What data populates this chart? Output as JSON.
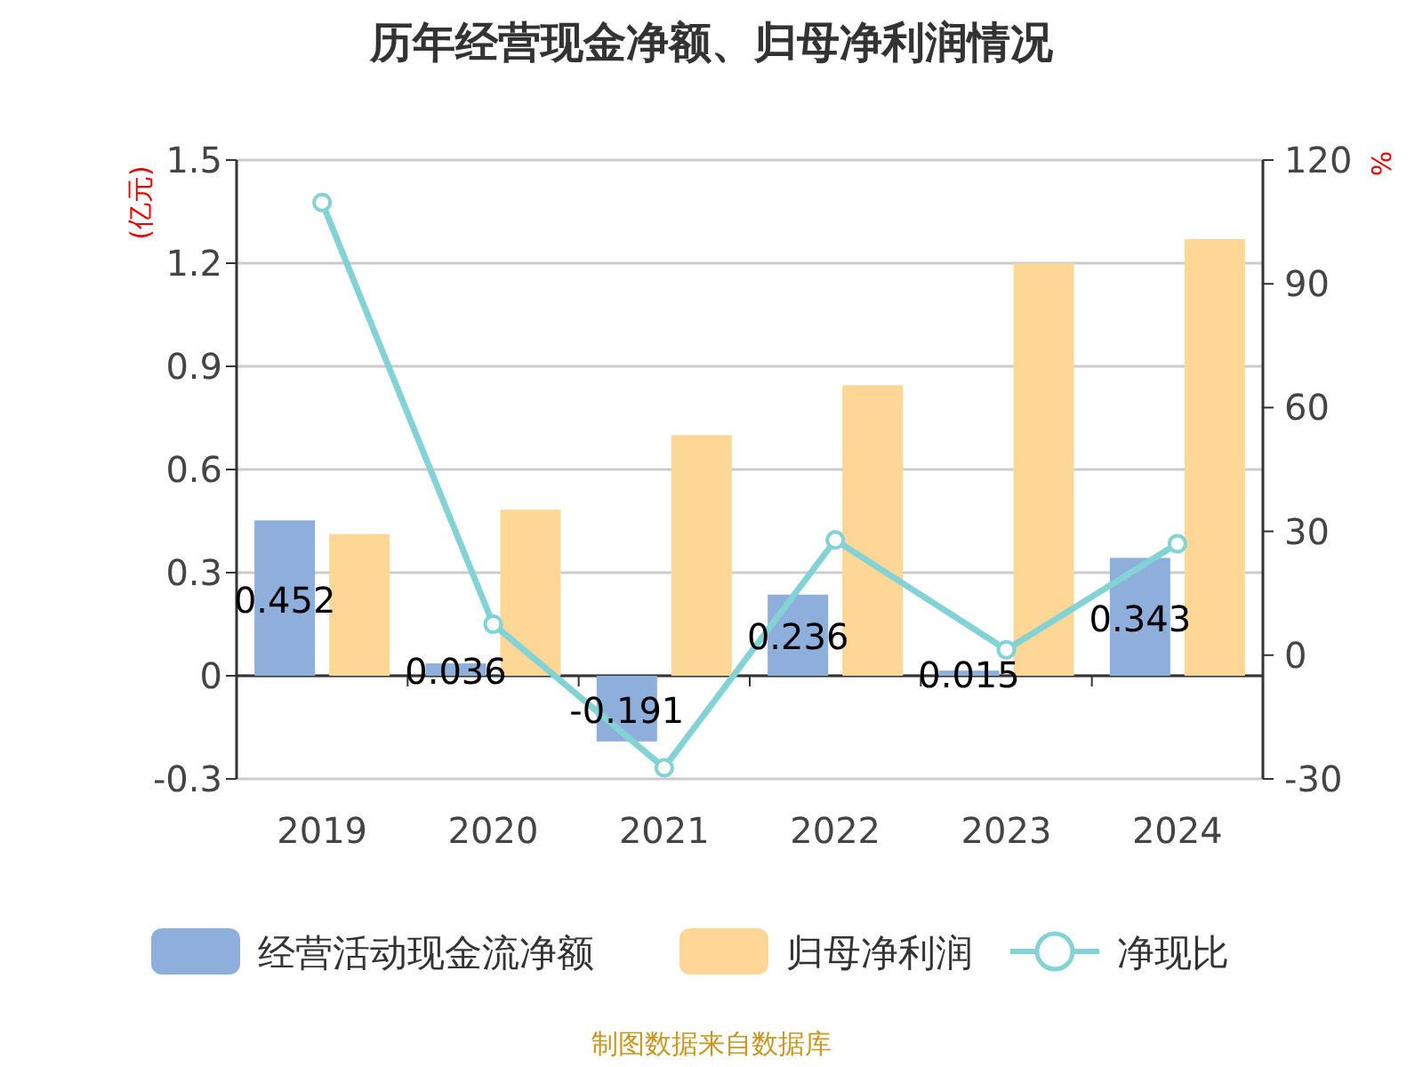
{
  "chart_data": {
    "type": "bar",
    "title": "历年经营现金净额、归母净利润情况",
    "categories": [
      "2019",
      "2020",
      "2021",
      "2022",
      "2023",
      "2024"
    ],
    "series": [
      {
        "name": "经营活动现金流净额",
        "color": "#8eaedb",
        "values": [
          0.452,
          0.036,
          -0.191,
          0.236,
          0.015,
          0.343
        ],
        "value_labels": [
          "0.452",
          "0.036",
          "-0.191",
          "0.236",
          "0.015",
          "0.343"
        ]
      },
      {
        "name": "归母净利润",
        "color": "#fed797",
        "values": [
          0.412,
          0.483,
          0.7,
          0.845,
          1.2,
          1.27
        ]
      },
      {
        "name": "净现比",
        "type": "line",
        "axis": "y2",
        "color": "#83d3d6",
        "marker": "circle",
        "values": [
          109.7,
          7.5,
          -27.3,
          27.9,
          1.3,
          27.0
        ]
      }
    ],
    "ylabel": "(亿元)",
    "y2label": "%",
    "ylim": [
      -0.3,
      1.5
    ],
    "yticks": [
      -0.3,
      0,
      0.3,
      0.6,
      0.9,
      1.2,
      1.5
    ],
    "y2lim": [
      -30,
      120
    ],
    "y2ticks": [
      -30,
      0,
      30,
      60,
      90,
      120
    ],
    "grid": "y",
    "legend": "bottom",
    "annotations": [
      "制图数据来自数据库"
    ]
  }
}
